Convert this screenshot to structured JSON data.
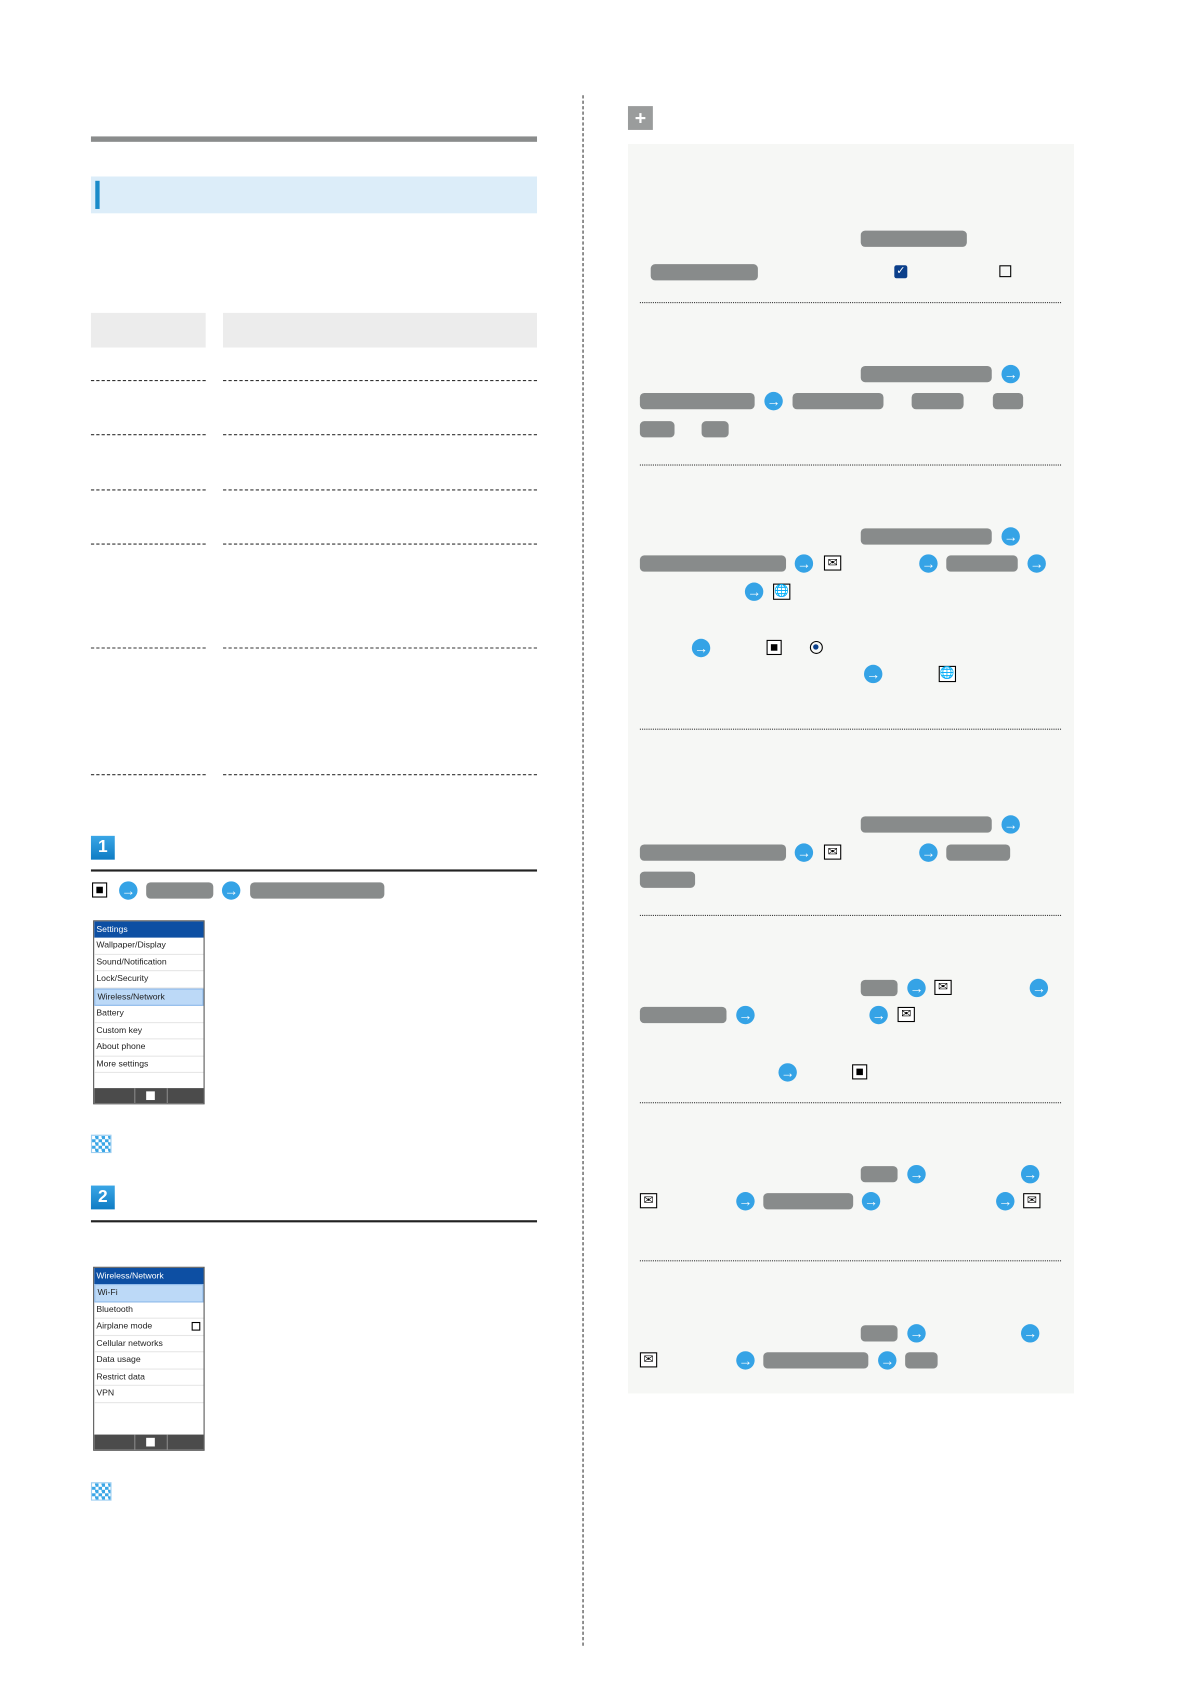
{
  "step1": {
    "number": "1"
  },
  "step2": {
    "number": "2"
  },
  "settings_screen": {
    "title": "Settings",
    "items": [
      "Wallpaper/Display",
      "Sound/Notification",
      "Lock/Security",
      "Wireless/Network",
      "Battery",
      "Custom key",
      "About phone",
      "More settings"
    ],
    "selected": "Wireless/Network"
  },
  "wireless_screen": {
    "title": "Wireless/Network",
    "items": [
      "Wi-Fi",
      "Bluetooth",
      "Airplane mode",
      "Cellular networks",
      "Data usage",
      "Restrict data",
      "VPN"
    ],
    "selected": "Wi-Fi",
    "airplane_mode_checked": false
  },
  "icons": {
    "arrow": "arrow-right-circle-icon",
    "center_key": "center-key-icon",
    "mail_key": "mail-key-icon",
    "web_key": "web-key-icon",
    "checkbox_on": "checkbox-checked-icon",
    "checkbox_off": "checkbox-unchecked-icon",
    "radio_on": "radio-selected-icon",
    "flag": "finish-flag-icon",
    "plus": "plus-icon"
  },
  "colors": {
    "accent": "#35a3e6",
    "heading_bar": "#dcedf9",
    "note_box": "#f6f7f5",
    "screen_title": "#0d4fa3"
  }
}
